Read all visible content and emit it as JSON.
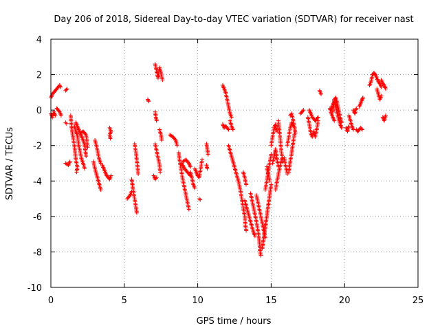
{
  "chart_data": {
    "type": "scatter",
    "title": "Day 206 of 2018, Sidereal Day-to-day VTEC variation (SDTVAR) for receiver nast",
    "xlabel": "GPS time / hours",
    "ylabel": "SDTVAR / TECUs",
    "xlim": [
      0,
      25
    ],
    "ylim": [
      -10,
      4
    ],
    "xticks": [
      0,
      5,
      10,
      15,
      20,
      25
    ],
    "yticks": [
      -10,
      -8,
      -6,
      -4,
      -2,
      0,
      2,
      4
    ],
    "grid": true,
    "marker": "+",
    "color": "#ff0000",
    "series_paths": [
      [
        [
          0.0,
          -0.2
        ],
        [
          0.1,
          -0.4
        ],
        [
          0.2,
          -0.1
        ],
        [
          0.3,
          -0.3
        ]
      ],
      [
        [
          0.0,
          0.7
        ],
        [
          0.1,
          0.9
        ],
        [
          0.2,
          1.0
        ],
        [
          0.3,
          1.1
        ],
        [
          0.4,
          1.2
        ],
        [
          0.5,
          1.3
        ],
        [
          0.6,
          1.4
        ],
        [
          0.65,
          1.3
        ]
      ],
      [
        [
          0.4,
          0.1
        ],
        [
          0.5,
          0.0
        ],
        [
          0.6,
          -0.1
        ],
        [
          0.7,
          -0.3
        ]
      ],
      [
        [
          1.0,
          1.1
        ],
        [
          1.1,
          1.2
        ]
      ],
      [
        [
          1.0,
          -0.7
        ]
      ],
      [
        [
          1.0,
          -3.0
        ],
        [
          1.2,
          -3.1
        ],
        [
          1.3,
          -2.9
        ]
      ],
      [
        [
          1.35,
          -0.3
        ],
        [
          1.4,
          -0.9
        ],
        [
          1.5,
          -1.5
        ],
        [
          1.6,
          -2.0
        ],
        [
          1.7,
          -2.8
        ],
        [
          1.8,
          -3.2
        ],
        [
          1.75,
          -3.5
        ]
      ],
      [
        [
          1.6,
          -0.9
        ],
        [
          1.7,
          -1.2
        ],
        [
          1.8,
          -1.4
        ],
        [
          1.9,
          -2.0
        ],
        [
          2.0,
          -2.4
        ],
        [
          2.1,
          -2.8
        ],
        [
          2.2,
          -3.0
        ],
        [
          2.3,
          -3.3
        ]
      ],
      [
        [
          1.7,
          -0.7
        ],
        [
          1.8,
          -0.9
        ],
        [
          1.9,
          -1.1
        ],
        [
          2.0,
          -1.3
        ],
        [
          2.1,
          -1.5
        ],
        [
          2.2,
          -1.7
        ],
        [
          2.3,
          -2.0
        ],
        [
          2.4,
          -2.6
        ]
      ],
      [
        [
          2.0,
          -1.3
        ],
        [
          2.2,
          -1.2
        ],
        [
          2.4,
          -1.4
        ],
        [
          2.5,
          -2.1
        ]
      ],
      [
        [
          2.9,
          -2.9
        ],
        [
          3.0,
          -3.3
        ],
        [
          3.1,
          -3.6
        ],
        [
          3.2,
          -3.9
        ],
        [
          3.3,
          -4.2
        ],
        [
          3.4,
          -4.5
        ]
      ],
      [
        [
          3.0,
          -1.7
        ],
        [
          3.1,
          -2.0
        ],
        [
          3.2,
          -2.4
        ],
        [
          3.3,
          -2.8
        ],
        [
          3.4,
          -3.0
        ]
      ],
      [
        [
          3.5,
          -3.1
        ],
        [
          3.6,
          -3.3
        ],
        [
          3.7,
          -3.5
        ],
        [
          3.8,
          -3.7
        ],
        [
          3.9,
          -3.8
        ],
        [
          4.0,
          -3.9
        ],
        [
          4.1,
          -3.7
        ]
      ],
      [
        [
          4.0,
          -1.0
        ],
        [
          4.1,
          -1.2
        ],
        [
          4.0,
          -1.4
        ],
        [
          4.05,
          -1.6
        ]
      ],
      [
        [
          5.2,
          -5.0
        ],
        [
          5.4,
          -4.8
        ],
        [
          5.5,
          -4.6
        ]
      ],
      [
        [
          5.5,
          -3.9
        ],
        [
          5.6,
          -4.5
        ],
        [
          5.7,
          -5.0
        ],
        [
          5.8,
          -5.5
        ],
        [
          5.85,
          -5.8
        ]
      ],
      [
        [
          5.7,
          -1.9
        ],
        [
          5.8,
          -2.4
        ],
        [
          5.85,
          -2.8
        ],
        [
          5.9,
          -3.2
        ],
        [
          5.95,
          -3.6
        ]
      ],
      [
        [
          6.6,
          0.6
        ],
        [
          6.65,
          0.5
        ]
      ],
      [
        [
          7.0,
          -3.7
        ],
        [
          7.1,
          -3.9
        ],
        [
          7.2,
          -3.8
        ]
      ],
      [
        [
          7.1,
          -0.1
        ],
        [
          7.15,
          -0.4
        ],
        [
          7.2,
          -0.6
        ]
      ],
      [
        [
          7.1,
          -1.9
        ],
        [
          7.2,
          -2.3
        ],
        [
          7.3,
          -2.7
        ],
        [
          7.4,
          -3.1
        ],
        [
          7.45,
          -3.5
        ]
      ],
      [
        [
          7.1,
          2.6
        ],
        [
          7.2,
          2.2
        ],
        [
          7.3,
          1.8
        ],
        [
          7.4,
          2.4
        ],
        [
          7.5,
          2.1
        ],
        [
          7.6,
          1.7
        ]
      ],
      [
        [
          7.4,
          -1.1
        ],
        [
          7.5,
          -1.4
        ],
        [
          7.55,
          -1.7
        ]
      ],
      [
        [
          8.1,
          -1.4
        ],
        [
          8.3,
          -1.5
        ],
        [
          8.5,
          -1.7
        ],
        [
          8.6,
          -2.0
        ]
      ],
      [
        [
          8.7,
          -2.4
        ],
        [
          8.8,
          -3.0
        ],
        [
          8.9,
          -3.5
        ],
        [
          9.0,
          -4.0
        ],
        [
          9.1,
          -4.4
        ],
        [
          9.2,
          -4.8
        ],
        [
          9.3,
          -5.2
        ],
        [
          9.4,
          -5.6
        ]
      ],
      [
        [
          8.9,
          -3.0
        ],
        [
          9.1,
          -3.3
        ],
        [
          9.3,
          -3.5
        ],
        [
          9.5,
          -3.7
        ]
      ],
      [
        [
          9.0,
          -2.9
        ],
        [
          9.2,
          -2.8
        ],
        [
          9.4,
          -3.0
        ],
        [
          9.5,
          -3.2
        ]
      ],
      [
        [
          9.5,
          -3.5
        ],
        [
          9.6,
          -3.8
        ],
        [
          9.7,
          -4.2
        ],
        [
          9.8,
          -4.4
        ]
      ],
      [
        [
          9.8,
          -3.3
        ],
        [
          9.9,
          -3.5
        ],
        [
          10.0,
          -3.7
        ],
        [
          10.1,
          -3.8
        ],
        [
          10.2,
          -3.3
        ],
        [
          10.3,
          -2.8
        ]
      ],
      [
        [
          10.1,
          -5.0
        ]
      ],
      [
        [
          10.6,
          -1.9
        ],
        [
          10.65,
          -2.2
        ],
        [
          10.7,
          -2.5
        ]
      ],
      [
        [
          10.6,
          -3.1
        ],
        [
          10.65,
          -3.3
        ]
      ],
      [
        [
          11.7,
          1.4
        ],
        [
          11.8,
          1.2
        ],
        [
          11.9,
          1.0
        ],
        [
          12.0,
          0.6
        ],
        [
          12.1,
          0.2
        ],
        [
          12.2,
          -0.2
        ],
        [
          12.3,
          -0.4
        ]
      ],
      [
        [
          11.7,
          -0.8
        ],
        [
          11.8,
          -1.0
        ],
        [
          11.9,
          -0.9
        ],
        [
          12.0,
          -1.0
        ],
        [
          12.1,
          -1.1
        ]
      ],
      [
        [
          12.2,
          -0.6
        ],
        [
          12.3,
          -0.9
        ],
        [
          12.4,
          -1.1
        ]
      ],
      [
        [
          12.1,
          -2.0
        ],
        [
          12.2,
          -2.3
        ],
        [
          12.3,
          -2.6
        ],
        [
          12.4,
          -2.9
        ],
        [
          12.5,
          -3.2
        ],
        [
          12.6,
          -3.5
        ],
        [
          12.7,
          -3.8
        ],
        [
          12.8,
          -4.1
        ],
        [
          12.9,
          -4.5
        ],
        [
          13.0,
          -5.0
        ],
        [
          13.1,
          -5.5
        ],
        [
          13.2,
          -6.0
        ],
        [
          13.25,
          -6.5
        ],
        [
          13.3,
          -6.8
        ]
      ],
      [
        [
          13.1,
          -3.5
        ],
        [
          13.2,
          -3.8
        ],
        [
          13.3,
          -4.2
        ]
      ],
      [
        [
          13.2,
          -5.1
        ],
        [
          13.3,
          -5.4
        ],
        [
          13.4,
          -5.7
        ],
        [
          13.5,
          -6.0
        ],
        [
          13.6,
          -6.3
        ],
        [
          13.7,
          -6.6
        ],
        [
          13.8,
          -6.9
        ],
        [
          13.9,
          -7.1
        ]
      ],
      [
        [
          13.6,
          -4.7
        ],
        [
          13.7,
          -5.1
        ],
        [
          13.8,
          -5.5
        ],
        [
          13.9,
          -5.9
        ],
        [
          14.0,
          -6.3
        ],
        [
          14.1,
          -6.8
        ],
        [
          14.2,
          -7.4
        ],
        [
          14.25,
          -8.0
        ],
        [
          14.3,
          -8.2
        ]
      ],
      [
        [
          14.0,
          -4.8
        ],
        [
          14.1,
          -5.2
        ],
        [
          14.2,
          -5.6
        ],
        [
          14.3,
          -6.0
        ],
        [
          14.4,
          -6.4
        ],
        [
          14.5,
          -6.8
        ],
        [
          14.6,
          -7.2
        ]
      ],
      [
        [
          14.4,
          -7.8
        ],
        [
          14.5,
          -7.2
        ],
        [
          14.6,
          -6.6
        ],
        [
          14.7,
          -6.0
        ],
        [
          14.8,
          -5.4
        ],
        [
          14.9,
          -4.8
        ],
        [
          15.0,
          -4.2
        ]
      ],
      [
        [
          14.6,
          -4.5
        ],
        [
          14.7,
          -4.0
        ],
        [
          14.8,
          -3.5
        ],
        [
          14.9,
          -3.0
        ],
        [
          15.0,
          -2.5
        ]
      ],
      [
        [
          14.7,
          -3.2
        ],
        [
          14.8,
          -3.6
        ],
        [
          14.9,
          -4.0
        ]
      ],
      [
        [
          15.0,
          -2.0
        ],
        [
          15.1,
          -1.5
        ],
        [
          15.2,
          -1.0
        ],
        [
          15.3,
          -0.8
        ],
        [
          15.4,
          -1.2
        ]
      ],
      [
        [
          15.1,
          -3.0
        ],
        [
          15.2,
          -2.6
        ],
        [
          15.3,
          -2.2
        ],
        [
          15.4,
          -2.8
        ],
        [
          15.5,
          -3.2
        ]
      ],
      [
        [
          15.3,
          -4.5
        ],
        [
          15.4,
          -4.0
        ],
        [
          15.5,
          -3.6
        ],
        [
          15.6,
          -3.2
        ],
        [
          15.7,
          -2.8
        ]
      ],
      [
        [
          15.5,
          -0.6
        ],
        [
          15.6,
          -1.5
        ],
        [
          15.7,
          -2.4
        ],
        [
          15.8,
          -2.9
        ]
      ],
      [
        [
          15.9,
          -2.7
        ],
        [
          16.0,
          -3.2
        ],
        [
          16.1,
          -3.6
        ]
      ],
      [
        [
          16.1,
          -2.0
        ],
        [
          16.2,
          -1.5
        ],
        [
          16.3,
          -1.0
        ],
        [
          16.4,
          -0.7
        ],
        [
          16.5,
          -0.9
        ]
      ],
      [
        [
          16.2,
          -3.5
        ],
        [
          16.3,
          -2.9
        ],
        [
          16.4,
          -2.4
        ],
        [
          16.5,
          -1.8
        ],
        [
          16.6,
          -1.3
        ]
      ],
      [
        [
          16.3,
          -0.3
        ],
        [
          16.4,
          -0.2
        ],
        [
          16.5,
          -0.6
        ],
        [
          16.6,
          -1.0
        ],
        [
          16.65,
          -1.3
        ]
      ],
      [
        [
          17.0,
          -0.2
        ],
        [
          17.1,
          -0.1
        ],
        [
          17.2,
          0.0
        ]
      ],
      [
        [
          17.5,
          -0.4
        ],
        [
          17.6,
          -0.8
        ],
        [
          17.7,
          -1.3
        ],
        [
          17.8,
          -1.5
        ],
        [
          17.9,
          -1.2
        ],
        [
          18.0,
          -1.5
        ],
        [
          18.1,
          -1.1
        ],
        [
          18.2,
          -0.6
        ]
      ],
      [
        [
          17.6,
          0.0
        ],
        [
          17.8,
          -0.4
        ],
        [
          18.0,
          -0.6
        ],
        [
          18.2,
          -0.4
        ]
      ],
      [
        [
          18.3,
          1.1
        ],
        [
          18.4,
          0.9
        ]
      ],
      [
        [
          19.1,
          0.1
        ],
        [
          19.2,
          0.3
        ],
        [
          19.3,
          0.5
        ],
        [
          19.4,
          0.2
        ],
        [
          19.5,
          -0.2
        ],
        [
          19.6,
          -0.5
        ],
        [
          19.7,
          -0.8
        ],
        [
          19.8,
          -1.0
        ]
      ],
      [
        [
          19.2,
          -0.1
        ],
        [
          19.3,
          0.6
        ],
        [
          19.4,
          0.7
        ],
        [
          19.5,
          0.4
        ],
        [
          19.6,
          0.0
        ],
        [
          19.7,
          -0.4
        ],
        [
          19.8,
          -0.7
        ]
      ],
      [
        [
          19.0,
          0.1
        ],
        [
          19.1,
          -0.2
        ],
        [
          19.2,
          -0.4
        ],
        [
          19.3,
          -0.6
        ]
      ],
      [
        [
          20.1,
          -1.0
        ],
        [
          20.2,
          -1.2
        ],
        [
          20.3,
          -0.9
        ]
      ],
      [
        [
          20.3,
          -0.3
        ],
        [
          20.4,
          -0.6
        ],
        [
          20.5,
          -0.9
        ],
        [
          20.6,
          -1.1
        ]
      ],
      [
        [
          20.6,
          0.0
        ],
        [
          20.7,
          -0.2
        ],
        [
          20.8,
          0.1
        ]
      ],
      [
        [
          20.8,
          -1.1
        ],
        [
          20.9,
          -1.2
        ],
        [
          21.0,
          -1.1
        ],
        [
          21.1,
          -1.0
        ],
        [
          21.2,
          -1.1
        ]
      ],
      [
        [
          21.0,
          0.2
        ],
        [
          21.1,
          0.4
        ],
        [
          21.2,
          0.6
        ],
        [
          21.25,
          0.7
        ]
      ],
      [
        [
          21.7,
          1.4
        ],
        [
          21.8,
          1.6
        ],
        [
          21.9,
          2.0
        ],
        [
          22.0,
          2.1
        ],
        [
          22.1,
          2.0
        ],
        [
          22.2,
          1.8
        ],
        [
          22.3,
          1.6
        ],
        [
          22.4,
          1.5
        ],
        [
          22.5,
          1.3
        ]
      ],
      [
        [
          22.2,
          1.2
        ],
        [
          22.3,
          0.9
        ],
        [
          22.4,
          0.6
        ],
        [
          22.5,
          0.8
        ]
      ],
      [
        [
          22.5,
          1.7
        ],
        [
          22.6,
          1.5
        ],
        [
          22.7,
          1.4
        ],
        [
          22.8,
          1.2
        ]
      ],
      [
        [
          22.6,
          -0.4
        ],
        [
          22.7,
          -0.6
        ],
        [
          22.8,
          -0.3
        ]
      ]
    ]
  }
}
